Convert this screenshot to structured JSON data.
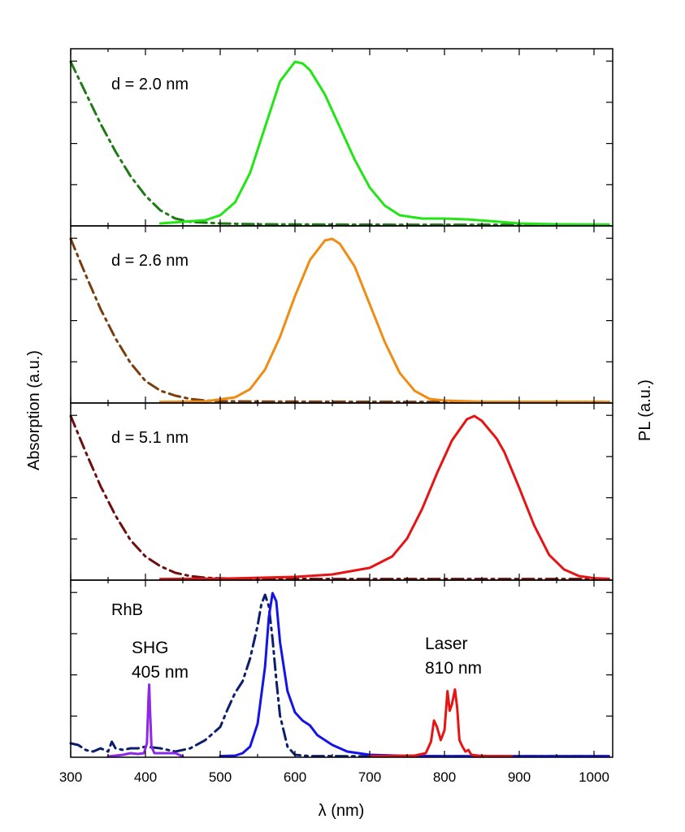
{
  "chart_data": {
    "type": "line",
    "xlabel": "λ (nm)",
    "ylabel_left": "Absorption (a.u.)",
    "ylabel_right": "PL (a.u.)",
    "xlim": [
      300,
      1025
    ],
    "xticks": [
      300,
      400,
      500,
      600,
      700,
      800,
      900,
      1000
    ],
    "ylim": [
      0,
      1.0
    ],
    "colors": {
      "axis": "#000000"
    },
    "panels": [
      {
        "label": "d = 2.0 nm",
        "series": [
          {
            "name": "absorption",
            "style": "dashdot",
            "color": "#1e7a14",
            "x": [
              300,
              320,
              340,
              360,
              380,
              400,
              420,
              440,
              460,
              500,
              550,
              650,
              750,
              850,
              1020
            ],
            "y": [
              1.0,
              0.81,
              0.62,
              0.45,
              0.3,
              0.18,
              0.09,
              0.04,
              0.02,
              0.01,
              0.005,
              0.003,
              0.002,
              0.002,
              0.002
            ]
          },
          {
            "name": "PL",
            "style": "solid",
            "color": "#22e614",
            "x": [
              420,
              450,
              480,
              500,
              520,
              540,
              560,
              580,
              600,
              610,
              620,
              640,
              660,
              680,
              700,
              720,
              740,
              770,
              800,
              830,
              860,
              900,
              950,
              1020
            ],
            "y": [
              0.01,
              0.02,
              0.03,
              0.06,
              0.14,
              0.32,
              0.6,
              0.88,
              1.0,
              0.99,
              0.95,
              0.8,
              0.6,
              0.4,
              0.23,
              0.12,
              0.06,
              0.04,
              0.04,
              0.035,
              0.025,
              0.01,
              0.005,
              0.003
            ]
          }
        ]
      },
      {
        "label": "d = 2.6 nm",
        "series": [
          {
            "name": "absorption",
            "style": "dashdot",
            "color": "#7a3e0e",
            "x": [
              300,
              320,
              340,
              360,
              380,
              400,
              420,
              440,
              460,
              480,
              500,
              550,
              650,
              750,
              850,
              1020
            ],
            "y": [
              1.0,
              0.78,
              0.57,
              0.39,
              0.24,
              0.13,
              0.07,
              0.04,
              0.02,
              0.01,
              0.006,
              0.004,
              0.003,
              0.002,
              0.002,
              0.002
            ]
          },
          {
            "name": "PL",
            "style": "solid",
            "color": "#f08c14",
            "x": [
              420,
              480,
              520,
              540,
              560,
              580,
              600,
              620,
              640,
              650,
              660,
              680,
              700,
              720,
              740,
              760,
              780,
              800,
              850,
              1020
            ],
            "y": [
              0.002,
              0.005,
              0.03,
              0.08,
              0.2,
              0.4,
              0.65,
              0.87,
              0.99,
              1.0,
              0.97,
              0.83,
              0.6,
              0.37,
              0.18,
              0.07,
              0.02,
              0.01,
              0.003,
              0.002
            ]
          }
        ]
      },
      {
        "label": "d = 5.1 nm",
        "series": [
          {
            "name": "absorption",
            "style": "dashdot",
            "color": "#6e0e0e",
            "x": [
              300,
              320,
              340,
              360,
              380,
              400,
              420,
              440,
              460,
              480,
              500,
              540,
              650,
              800,
              1020
            ],
            "y": [
              1.0,
              0.78,
              0.57,
              0.39,
              0.24,
              0.14,
              0.08,
              0.04,
              0.02,
              0.01,
              0.006,
              0.003,
              0.002,
              0.002,
              0.002
            ]
          },
          {
            "name": "PL",
            "style": "solid",
            "color": "#e61414",
            "x": [
              420,
              500,
              600,
              650,
              700,
              730,
              750,
              770,
              790,
              810,
              830,
              840,
              850,
              870,
              880,
              900,
              920,
              940,
              960,
              980,
              1000,
              1020
            ],
            "y": [
              0.002,
              0.004,
              0.015,
              0.03,
              0.07,
              0.14,
              0.25,
              0.43,
              0.65,
              0.85,
              0.98,
              1.0,
              0.97,
              0.86,
              0.78,
              0.56,
              0.33,
              0.15,
              0.06,
              0.02,
              0.007,
              0.003
            ]
          }
        ]
      },
      {
        "label": "RhB",
        "series": [
          {
            "name": "RhB absorption",
            "style": "dashdot",
            "color": "#0c1e6e",
            "x": [
              300,
              310,
              320,
              330,
              340,
              350,
              355,
              360,
              370,
              380,
              390,
              400,
              420,
              440,
              460,
              480,
              500,
              510,
              520,
              530,
              540,
              550,
              555,
              560,
              565,
              570,
              575,
              580,
              590,
              600,
              620,
              700,
              800,
              1020
            ],
            "y": [
              0.08,
              0.07,
              0.04,
              0.03,
              0.05,
              0.03,
              0.09,
              0.05,
              0.04,
              0.05,
              0.05,
              0.06,
              0.05,
              0.03,
              0.05,
              0.1,
              0.18,
              0.29,
              0.39,
              0.46,
              0.6,
              0.8,
              0.93,
              0.99,
              0.92,
              0.72,
              0.47,
              0.25,
              0.06,
              0.01,
              0.002,
              0.001,
              0.001,
              0.001
            ]
          },
          {
            "name": "RhB PL",
            "style": "solid",
            "color": "#1414e6",
            "x": [
              500,
              520,
              530,
              540,
              550,
              560,
              565,
              570,
              575,
              580,
              590,
              600,
              610,
              620,
              630,
              650,
              670,
              700,
              750,
              800,
              1020
            ],
            "y": [
              0.002,
              0.005,
              0.02,
              0.06,
              0.2,
              0.55,
              0.85,
              1.0,
              0.95,
              0.7,
              0.4,
              0.27,
              0.22,
              0.19,
              0.13,
              0.07,
              0.03,
              0.01,
              0.003,
              0.002,
              0.002
            ]
          },
          {
            "name": "SHG 405 nm",
            "style": "solid",
            "color": "#8c28e6",
            "x": [
              350,
              370,
              380,
              390,
              398,
              402,
              404,
              405,
              406,
              408,
              412,
              420,
              440,
              450
            ],
            "y": [
              0.0,
              0.01,
              0.02,
              0.015,
              0.02,
              0.08,
              0.35,
              0.44,
              0.3,
              0.06,
              0.02,
              0.02,
              0.02,
              0.0
            ]
          },
          {
            "name": "Laser 810 nm",
            "style": "solid",
            "color": "#e61414",
            "x": [
              700,
              760,
              775,
              782,
              786,
              790,
              795,
              800,
              804,
              807,
              810,
              814,
              817,
              820,
              824,
              828,
              832,
              836,
              845,
              860,
              890
            ],
            "y": [
              0.002,
              0.005,
              0.02,
              0.09,
              0.22,
              0.18,
              0.1,
              0.16,
              0.4,
              0.28,
              0.32,
              0.41,
              0.3,
              0.1,
              0.06,
              0.03,
              0.04,
              0.01,
              0.005,
              0.002,
              0.002
            ]
          }
        ]
      }
    ],
    "annotations": [
      {
        "text": "SHG",
        "x": 405,
        "y": 0.58
      },
      {
        "text": "405 nm",
        "x": 405,
        "y": 0.45
      },
      {
        "text": "Laser",
        "x": 820,
        "y": 0.62
      },
      {
        "text": "810 nm",
        "x": 820,
        "y": 0.49
      }
    ]
  }
}
